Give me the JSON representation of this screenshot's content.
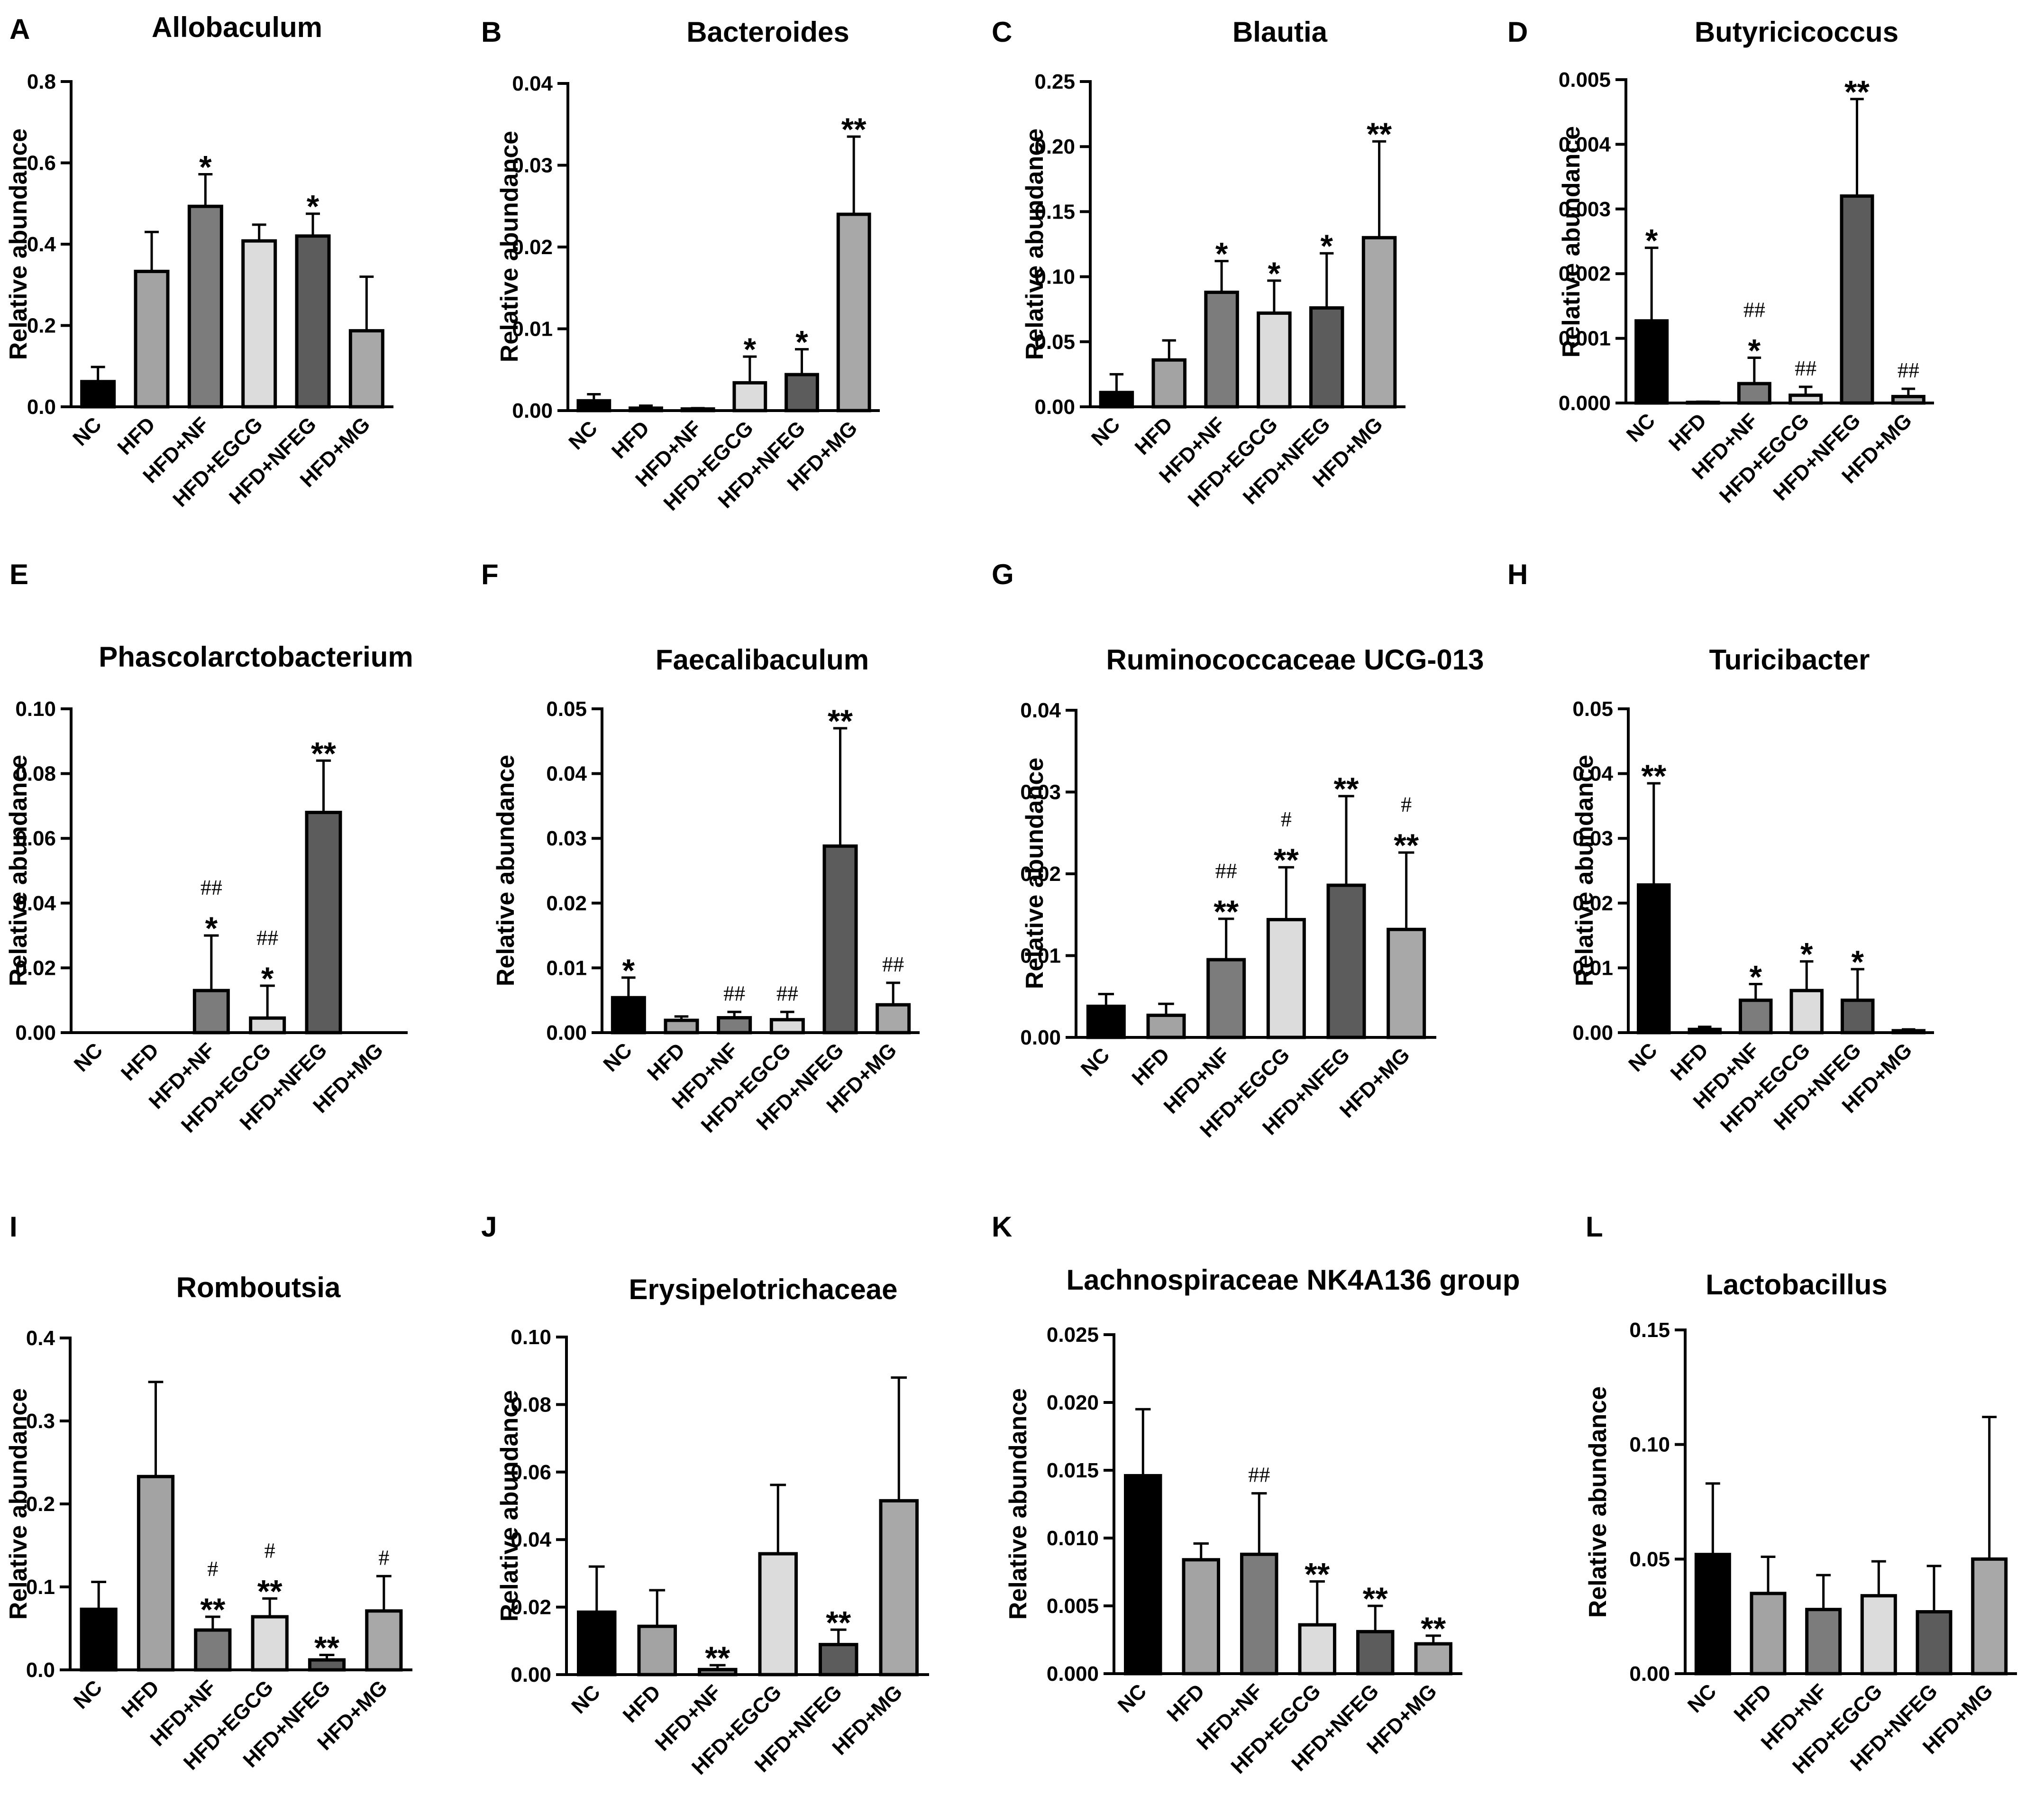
{
  "categories": [
    "NC",
    "HFD",
    "HFD+NF",
    "HFD+EGCG",
    "HFD+NFEG",
    "HFD+MG"
  ],
  "bar_colors": [
    "#000000",
    "#a3a3a3",
    "#7c7c7c",
    "#dcdcdc",
    "#5c5c5c",
    "#a8a8a8"
  ],
  "y_axis_label": "Relative abundance",
  "chart_data": [
    {
      "letter": "A",
      "title": "Allobaculum",
      "type": "bar",
      "yticks": [
        "0.0",
        "0.2",
        "0.4",
        "0.6",
        "0.8"
      ],
      "ylim": [
        0,
        0.8
      ],
      "values": [
        0.062,
        0.333,
        0.493,
        0.408,
        0.42,
        0.187
      ],
      "errors": [
        0.098,
        0.43,
        0.572,
        0.448,
        0.475,
        0.32
      ],
      "annotations": [
        [],
        [],
        [
          "*"
        ],
        [],
        [
          "*"
        ],
        []
      ]
    },
    {
      "letter": "B",
      "title": "Bacteroides",
      "type": "bar",
      "yticks": [
        "0.00",
        "0.01",
        "0.02",
        "0.03",
        "0.04"
      ],
      "ylim": [
        0,
        0.04
      ],
      "values": [
        0.0012,
        0.0003,
        0.0002,
        0.0034,
        0.0044,
        0.024
      ],
      "errors": [
        0.002,
        0.0006,
        0.0003,
        0.0066,
        0.0075,
        0.0335
      ],
      "annotations": [
        [],
        [],
        [],
        [
          "*"
        ],
        [
          "*"
        ],
        [
          "**"
        ]
      ]
    },
    {
      "letter": "C",
      "title": "Blautia",
      "type": "bar",
      "yticks": [
        "0.00",
        "0.05",
        "0.10",
        "0.15",
        "0.20",
        "0.25"
      ],
      "ylim": [
        0,
        0.25
      ],
      "values": [
        0.011,
        0.036,
        0.088,
        0.072,
        0.076,
        0.13
      ],
      "errors": [
        0.025,
        0.051,
        0.112,
        0.097,
        0.118,
        0.204
      ],
      "annotations": [
        [],
        [],
        [
          "*"
        ],
        [
          "*"
        ],
        [
          "*"
        ],
        [
          "**"
        ]
      ]
    },
    {
      "letter": "D",
      "title": "Butyricicoccus",
      "type": "bar",
      "yticks": [
        "0.000",
        "0.001",
        "0.002",
        "0.003",
        "0.004",
        "0.005"
      ],
      "ylim": [
        0,
        0.005
      ],
      "values": [
        0.00127,
        1e-05,
        0.0003,
        0.00012,
        0.0032,
        0.0001
      ],
      "errors": [
        0.0024,
        2e-05,
        0.0007,
        0.00025,
        0.0047,
        0.00022
      ],
      "annotations": [
        [
          "*"
        ],
        [],
        [
          "*",
          "##"
        ],
        [
          "##"
        ],
        [
          "**"
        ],
        [
          "##"
        ]
      ]
    },
    {
      "letter": "E",
      "title": "Phascolarctobacterium",
      "type": "bar",
      "yticks": [
        "0.00",
        "0.02",
        "0.04",
        "0.06",
        "0.08",
        "0.10"
      ],
      "ylim": [
        0,
        0.1
      ],
      "values": [
        0,
        0,
        0.013,
        0.0045,
        0.068,
        0
      ],
      "errors": [
        0,
        0,
        0.03,
        0.0145,
        0.084,
        0
      ],
      "annotations": [
        [],
        [],
        [
          "*",
          "##"
        ],
        [
          "*",
          "##"
        ],
        [
          "**"
        ],
        []
      ]
    },
    {
      "letter": "F",
      "title": "Faecalibaculum",
      "type": "bar",
      "yticks": [
        "0.00",
        "0.01",
        "0.02",
        "0.03",
        "0.04",
        "0.05"
      ],
      "ylim": [
        0,
        0.05
      ],
      "values": [
        0.0054,
        0.0019,
        0.0023,
        0.002,
        0.0288,
        0.0043
      ],
      "errors": [
        0.0085,
        0.0025,
        0.0032,
        0.0032,
        0.047,
        0.0077
      ],
      "annotations": [
        [
          "*"
        ],
        [],
        [
          "##"
        ],
        [
          "##"
        ],
        [
          "**"
        ],
        [
          "##"
        ]
      ]
    },
    {
      "letter": "G",
      "title": "Ruminococcaceae UCG-013",
      "type": "bar",
      "yticks": [
        "0.00",
        "0.01",
        "0.02",
        "0.03",
        "0.04"
      ],
      "ylim": [
        0,
        0.04
      ],
      "values": [
        0.0038,
        0.0027,
        0.0095,
        0.0144,
        0.0186,
        0.0132
      ],
      "errors": [
        0.0053,
        0.0041,
        0.0145,
        0.0208,
        0.0295,
        0.0226
      ],
      "annotations": [
        [],
        [],
        [
          "**",
          "##"
        ],
        [
          "**",
          "#"
        ],
        [
          "**"
        ],
        [
          "**",
          "#"
        ]
      ]
    },
    {
      "letter": "H",
      "title": "Turicibacter",
      "type": "bar",
      "yticks": [
        "0.00",
        "0.01",
        "0.02",
        "0.03",
        "0.04",
        "0.05"
      ],
      "ylim": [
        0,
        0.05
      ],
      "values": [
        0.0228,
        0.0005,
        0.005,
        0.0065,
        0.005,
        0.0003
      ],
      "errors": [
        0.0385,
        0.0009,
        0.0075,
        0.011,
        0.0098,
        0.0005
      ],
      "annotations": [
        [
          "**"
        ],
        [],
        [
          "*"
        ],
        [
          "*"
        ],
        [
          "*"
        ],
        []
      ]
    },
    {
      "letter": "I",
      "title": "Romboutsia",
      "type": "bar",
      "yticks": [
        "0.0",
        "0.1",
        "0.2",
        "0.3",
        "0.4"
      ],
      "ylim": [
        0,
        0.4
      ],
      "values": [
        0.073,
        0.233,
        0.048,
        0.064,
        0.012,
        0.071
      ],
      "errors": [
        0.106,
        0.347,
        0.064,
        0.086,
        0.018,
        0.113
      ],
      "annotations": [
        [],
        [],
        [
          "**",
          "#"
        ],
        [
          "**",
          "#"
        ],
        [
          "**"
        ],
        [
          "#"
        ]
      ]
    },
    {
      "letter": "J",
      "title": "Erysipelotrichaceae",
      "type": "bar",
      "yticks": [
        "0.00",
        "0.02",
        "0.04",
        "0.06",
        "0.08",
        "0.10"
      ],
      "ylim": [
        0,
        0.1
      ],
      "values": [
        0.0185,
        0.0143,
        0.0015,
        0.0358,
        0.0089,
        0.0515
      ],
      "errors": [
        0.032,
        0.025,
        0.0028,
        0.0562,
        0.0133,
        0.088
      ],
      "annotations": [
        [],
        [],
        [
          "**"
        ],
        [],
        [
          "**"
        ],
        []
      ]
    },
    {
      "letter": "K",
      "title": "Lachnospiraceae NK4A136 group",
      "type": "bar",
      "yticks": [
        "0.000",
        "0.005",
        "0.010",
        "0.015",
        "0.020",
        "0.025"
      ],
      "ylim": [
        0,
        0.025
      ],
      "values": [
        0.0146,
        0.0084,
        0.0088,
        0.0036,
        0.0031,
        0.0022
      ],
      "errors": [
        0.0195,
        0.0096,
        0.0133,
        0.0068,
        0.005,
        0.0028
      ],
      "annotations": [
        [],
        [],
        [
          "##"
        ],
        [
          "**"
        ],
        [
          "**"
        ],
        [
          "**"
        ]
      ]
    },
    {
      "letter": "L",
      "title": "Lactobacillus",
      "type": "bar",
      "yticks": [
        "0.00",
        "0.05",
        "0.10",
        "0.15"
      ],
      "ylim": [
        0,
        0.15
      ],
      "values": [
        0.052,
        0.035,
        0.028,
        0.034,
        0.027,
        0.05
      ],
      "errors": [
        0.083,
        0.051,
        0.043,
        0.049,
        0.047,
        0.112
      ],
      "annotations": [
        [],
        [],
        [],
        [],
        [],
        []
      ]
    }
  ]
}
